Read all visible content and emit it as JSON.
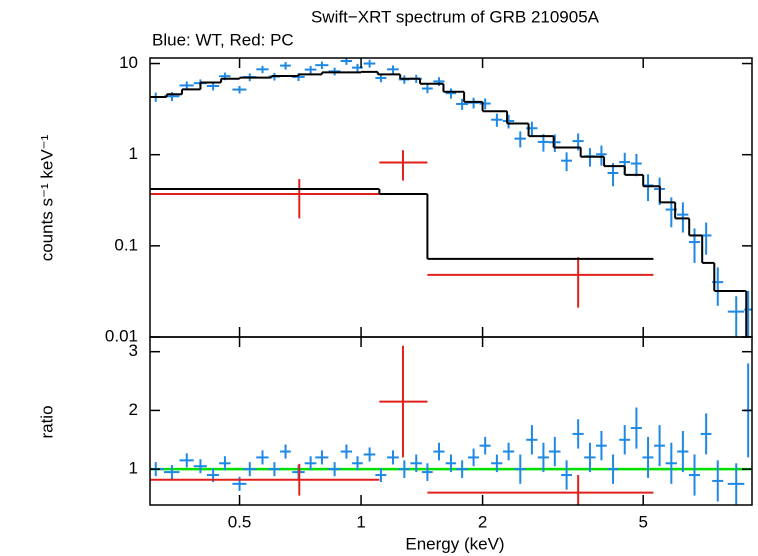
{
  "chart_data": [
    {
      "type": "scatter",
      "title": "Swift−XRT spectrum of GRB 210905A",
      "subtitle": "Blue: WT, Red: PC",
      "ylabel": "counts s⁻¹ keV⁻¹",
      "xlog": true,
      "ylog": true,
      "xtick_labels": false,
      "xlim": [
        0.3,
        9.3
      ],
      "ylim": [
        0.01,
        11.5
      ],
      "xticks": [
        0.5,
        1,
        2,
        5
      ],
      "yticks": [
        0.01,
        0.1,
        1,
        10
      ],
      "series": [
        {
          "style": "errorbar",
          "color": "#1e88e5",
          "x": [
            0.31,
            0.34,
            0.37,
            0.4,
            0.43,
            0.46,
            0.5,
            0.53,
            0.57,
            0.61,
            0.65,
            0.7,
            0.75,
            0.8,
            0.86,
            0.92,
            0.98,
            1.05,
            1.12,
            1.2,
            1.28,
            1.37,
            1.46,
            1.56,
            1.67,
            1.78,
            1.9,
            2.03,
            2.17,
            2.32,
            2.48,
            2.65,
            2.83,
            3.02,
            3.23,
            3.45,
            3.69,
            3.94,
            4.21,
            4.5,
            4.81,
            5.14,
            5.49,
            5.87,
            6.27,
            6.7,
            7.16,
            7.65,
            8.5,
            9.1
          ],
          "xerr": [
            0.015,
            0.015,
            0.015,
            0.015,
            0.015,
            0.015,
            0.02,
            0.02,
            0.02,
            0.02,
            0.02,
            0.025,
            0.025,
            0.03,
            0.03,
            0.03,
            0.03,
            0.035,
            0.035,
            0.04,
            0.04,
            0.045,
            0.045,
            0.05,
            0.05,
            0.06,
            0.06,
            0.065,
            0.07,
            0.075,
            0.08,
            0.085,
            0.09,
            0.1,
            0.1,
            0.11,
            0.12,
            0.12,
            0.13,
            0.14,
            0.15,
            0.16,
            0.17,
            0.19,
            0.2,
            0.21,
            0.22,
            0.24,
            0.4,
            0.2
          ],
          "values": [
            4.3,
            4.37,
            5.75,
            6.09,
            5.67,
            7.26,
            5.18,
            7.1,
            8.64,
            7.2,
            9.49,
            7.13,
            8.58,
            9.6,
            8.2,
            10.66,
            9.02,
            10.0,
            6.93,
            8.64,
            6.7,
            6.82,
            5.32,
            6.37,
            4.73,
            3.6,
            3.72,
            3.64,
            2.42,
            2.34,
            1.5,
            1.95,
            1.38,
            1.37,
            0.86,
            1.41,
            0.96,
            1.01,
            0.63,
            0.83,
            0.8,
            0.46,
            0.42,
            0.25,
            0.22,
            0.11,
            0.13,
            0.04,
            0.019,
            0.02
          ],
          "yerr": [
            0.5,
            0.5,
            0.6,
            0.6,
            0.6,
            0.7,
            0.5,
            0.7,
            0.8,
            0.7,
            0.9,
            0.7,
            0.8,
            0.9,
            0.8,
            1.0,
            0.9,
            1.0,
            0.7,
            0.9,
            0.7,
            0.7,
            0.6,
            0.7,
            0.6,
            0.5,
            0.5,
            0.5,
            0.4,
            0.4,
            0.3,
            0.35,
            0.3,
            0.3,
            0.2,
            0.3,
            0.22,
            0.25,
            0.18,
            0.22,
            0.22,
            0.15,
            0.14,
            0.09,
            0.08,
            0.045,
            0.05,
            0.018,
            0.009,
            0.012
          ]
        },
        {
          "style": "errorbar",
          "color": "#e0201b",
          "x": [
            0.703,
            1.27,
            3.45
          ],
          "xlo": [
            0.3,
            1.11,
            1.46
          ],
          "xhi": [
            1.11,
            1.46,
            5.3
          ],
          "values": [
            0.37,
            0.82,
            0.048
          ],
          "yerr": [
            0.17,
            0.3,
            0.027
          ]
        },
        {
          "style": "step",
          "color": "#000000",
          "bins": [
            0.3,
            0.33,
            0.36,
            0.4,
            0.45,
            0.5,
            0.6,
            0.7,
            0.8,
            1.0,
            1.1,
            1.25,
            1.4,
            1.6,
            1.8,
            2.0,
            2.3,
            2.6,
            3.0,
            3.5,
            4.0,
            4.5,
            5.0,
            5.5,
            6.0,
            6.5,
            7.0,
            7.5,
            9.0,
            9.3
          ],
          "values": [
            4.3,
            4.6,
            5.2,
            6.2,
            6.8,
            7.0,
            7.3,
            7.6,
            8.0,
            8.1,
            7.6,
            6.8,
            6.0,
            4.9,
            3.8,
            3.0,
            2.2,
            1.6,
            1.2,
            0.95,
            0.75,
            0.6,
            0.45,
            0.3,
            0.2,
            0.13,
            0.065,
            0.032,
            0.01
          ]
        },
        {
          "style": "step",
          "color": "#000000",
          "bins": [
            0.3,
            1.11,
            1.46,
            5.3
          ],
          "values": [
            0.42,
            0.37,
            0.072
          ]
        }
      ]
    },
    {
      "type": "scatter",
      "xlabel": "Energy (keV)",
      "ylabel": "ratio",
      "xlog": true,
      "ylog": false,
      "xtick_labels": true,
      "xlim": [
        0.3,
        9.3
      ],
      "ylim": [
        0.39,
        3.25
      ],
      "xticks": [
        0.5,
        1,
        2,
        5
      ],
      "yticks": [
        1,
        2,
        3
      ],
      "reference": 1,
      "reference_color": "#00e000",
      "series": [
        {
          "style": "errorbar",
          "color": "#1e88e5",
          "x": [
            0.31,
            0.34,
            0.37,
            0.4,
            0.43,
            0.46,
            0.5,
            0.53,
            0.57,
            0.61,
            0.65,
            0.7,
            0.75,
            0.8,
            0.86,
            0.92,
            0.98,
            1.05,
            1.12,
            1.2,
            1.28,
            1.37,
            1.46,
            1.56,
            1.67,
            1.78,
            1.9,
            2.03,
            2.17,
            2.32,
            2.48,
            2.65,
            2.83,
            3.02,
            3.23,
            3.45,
            3.69,
            3.94,
            4.21,
            4.5,
            4.81,
            5.14,
            5.49,
            5.87,
            6.27,
            6.7,
            7.16,
            7.65,
            8.5,
            9.1
          ],
          "xerr": [
            0.015,
            0.015,
            0.015,
            0.015,
            0.015,
            0.015,
            0.02,
            0.02,
            0.02,
            0.02,
            0.02,
            0.025,
            0.025,
            0.03,
            0.03,
            0.03,
            0.03,
            0.035,
            0.035,
            0.04,
            0.04,
            0.045,
            0.045,
            0.05,
            0.05,
            0.06,
            0.06,
            0.065,
            0.07,
            0.075,
            0.08,
            0.085,
            0.09,
            0.1,
            0.1,
            0.11,
            0.12,
            0.12,
            0.13,
            0.14,
            0.15,
            0.16,
            0.17,
            0.19,
            0.2,
            0.21,
            0.22,
            0.24,
            0.4,
            0.2
          ],
          "values": [
            1.0,
            0.95,
            1.15,
            1.05,
            0.9,
            1.1,
            0.75,
            1.0,
            1.2,
            1.0,
            1.3,
            0.95,
            1.1,
            1.2,
            1.0,
            1.3,
            1.1,
            1.25,
            0.9,
            1.2,
            1.0,
            1.1,
            0.95,
            1.3,
            1.1,
            1.0,
            1.2,
            1.4,
            1.1,
            1.3,
            1.0,
            1.5,
            1.2,
            1.3,
            0.9,
            1.6,
            1.2,
            1.4,
            1.0,
            1.5,
            1.7,
            1.2,
            1.4,
            1.1,
            1.3,
            0.9,
            1.6,
            0.8,
            0.75,
            2.0
          ],
          "yerr": [
            0.12,
            0.12,
            0.12,
            0.12,
            0.12,
            0.12,
            0.12,
            0.12,
            0.12,
            0.12,
            0.12,
            0.12,
            0.12,
            0.12,
            0.12,
            0.12,
            0.12,
            0.12,
            0.12,
            0.12,
            0.15,
            0.15,
            0.15,
            0.15,
            0.15,
            0.15,
            0.15,
            0.15,
            0.15,
            0.15,
            0.25,
            0.25,
            0.25,
            0.25,
            0.25,
            0.25,
            0.25,
            0.25,
            0.25,
            0.25,
            0.35,
            0.35,
            0.35,
            0.35,
            0.35,
            0.35,
            0.35,
            0.35,
            0.35,
            0.8
          ]
        },
        {
          "style": "errorbar",
          "color": "#e0201b",
          "x": [
            0.703,
            1.27,
            3.45
          ],
          "xlo": [
            0.3,
            1.11,
            1.46
          ],
          "xhi": [
            1.11,
            1.46,
            5.3
          ],
          "values": [
            0.82,
            2.15,
            0.6
          ],
          "yerr": [
            0.27,
            0.95,
            0.3
          ]
        }
      ]
    }
  ]
}
